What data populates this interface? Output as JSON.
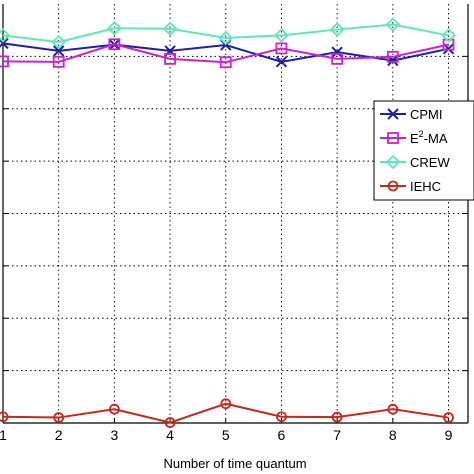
{
  "chart_data": {
    "type": "line",
    "xlabel": "Number of time quantum",
    "ylabel": "",
    "title": "",
    "x": [
      1,
      2,
      3,
      4,
      5,
      6,
      7,
      8,
      9
    ],
    "xtick_labels": [
      "1",
      "2",
      "3",
      "4",
      "5",
      "6",
      "7",
      "8",
      "9"
    ],
    "xlim": [
      1,
      9.35
    ],
    "ylim": [
      0,
      1
    ],
    "grid": true,
    "legend_position": "right",
    "series": [
      {
        "name": "CPMI",
        "color": "#1f1fa8",
        "marker": "x",
        "values": [
          0.906,
          0.888,
          0.903,
          0.888,
          0.902,
          0.862,
          0.885,
          0.865,
          0.893
        ]
      },
      {
        "name": "E²-MA",
        "name_sup": "2",
        "name_base": "E",
        "name_rest": "-MA",
        "color": "#cc22cc",
        "marker": "square",
        "values": [
          0.863,
          0.862,
          0.904,
          0.869,
          0.861,
          0.894,
          0.869,
          0.874,
          0.903
        ]
      },
      {
        "name": "CREW",
        "color": "#60e8b4",
        "marker": "diamond",
        "values": [
          0.925,
          0.909,
          0.942,
          0.941,
          0.919,
          0.925,
          0.939,
          0.951,
          0.925
        ]
      },
      {
        "name": "IEHC",
        "color": "#c8281e",
        "marker": "circle",
        "values": [
          0.015,
          0.013,
          0.033,
          0.001,
          0.046,
          0.015,
          0.014,
          0.033,
          0.013
        ]
      }
    ]
  },
  "colors": {
    "grid": "#000000",
    "axis": "#000000"
  }
}
